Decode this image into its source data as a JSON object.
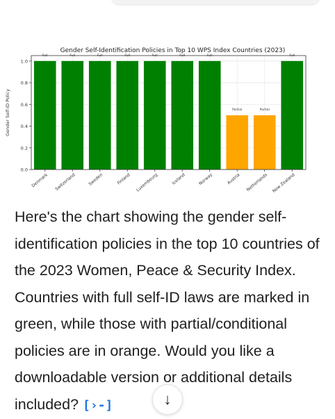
{
  "chart_data": {
    "type": "bar",
    "title": "Gender Self-Identification Policies in Top 10 WPS Index Countries (2023)",
    "xlabel": "",
    "ylabel": "Gender Self-ID Policy",
    "ylim": [
      0,
      1.05
    ],
    "yticks": [
      "0.0",
      "0.2",
      "0.4",
      "0.6",
      "0.8",
      "1.0"
    ],
    "grid": true,
    "categories": [
      "Denmark",
      "Switzerland",
      "Sweden",
      "Finland",
      "Luxembourg",
      "Iceland",
      "Norway",
      "Austria",
      "Netherlands",
      "New Zealand"
    ],
    "values": [
      1,
      1,
      1,
      1,
      1,
      1,
      1,
      0.5,
      0.5,
      1
    ],
    "bar_labels": [
      "Full",
      "Full",
      "Full",
      "Full",
      "Full",
      "Full",
      "Full",
      "Partial",
      "Partial",
      "Full"
    ],
    "colors": {
      "Full": "#008000",
      "Partial": "#ffa500"
    }
  },
  "message": {
    "text": "Here's the chart showing the gender self-identification policies in the top 10 countries of the 2023 Women, Peace & Security Index. Countries with full self-ID laws are marked in green, while those with partial/conditional policies are in orange. Would you like a downloadable version or additional details included?"
  },
  "icons": {
    "source": "source-link-icon",
    "scroll": "arrow-down-icon"
  },
  "scroll_button": {
    "glyph": "↓"
  }
}
